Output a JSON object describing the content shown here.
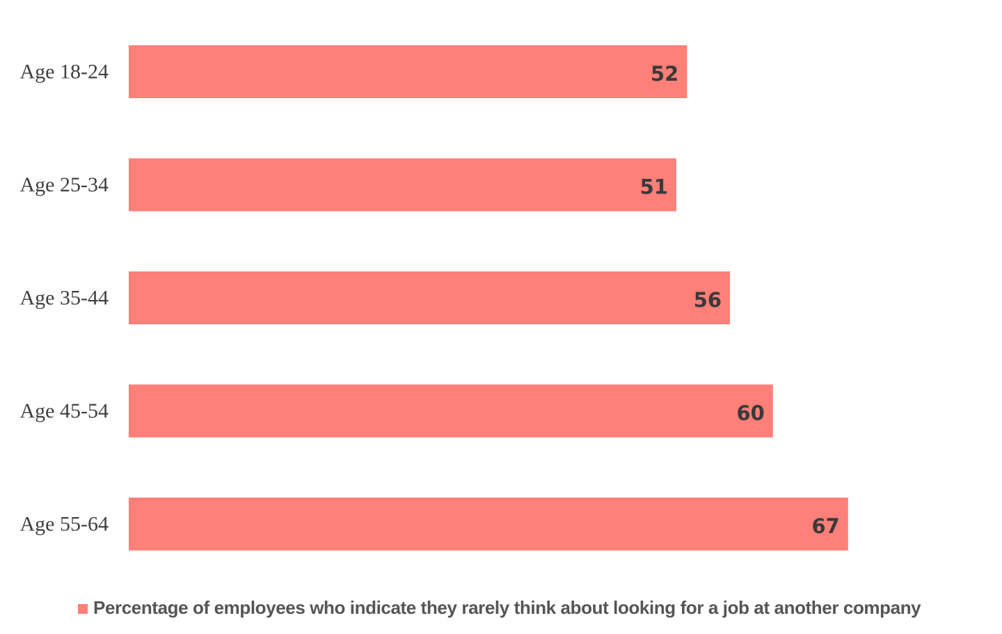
{
  "chart_data": {
    "type": "bar",
    "orientation": "horizontal",
    "categories": [
      "Age 18-24",
      "Age 25-34",
      "Age 35-44",
      "Age 45-54",
      "Age 55-64"
    ],
    "series": [
      {
        "name": "Percentage of employees who indicate they rarely think about looking for a job at another company",
        "values": [
          52,
          51,
          56,
          60,
          67
        ],
        "color": "#ff7f79"
      }
    ],
    "xlim": [
      0,
      80
    ],
    "grid": false,
    "legend_position": "bottom",
    "data_labels": "inside-end"
  }
}
